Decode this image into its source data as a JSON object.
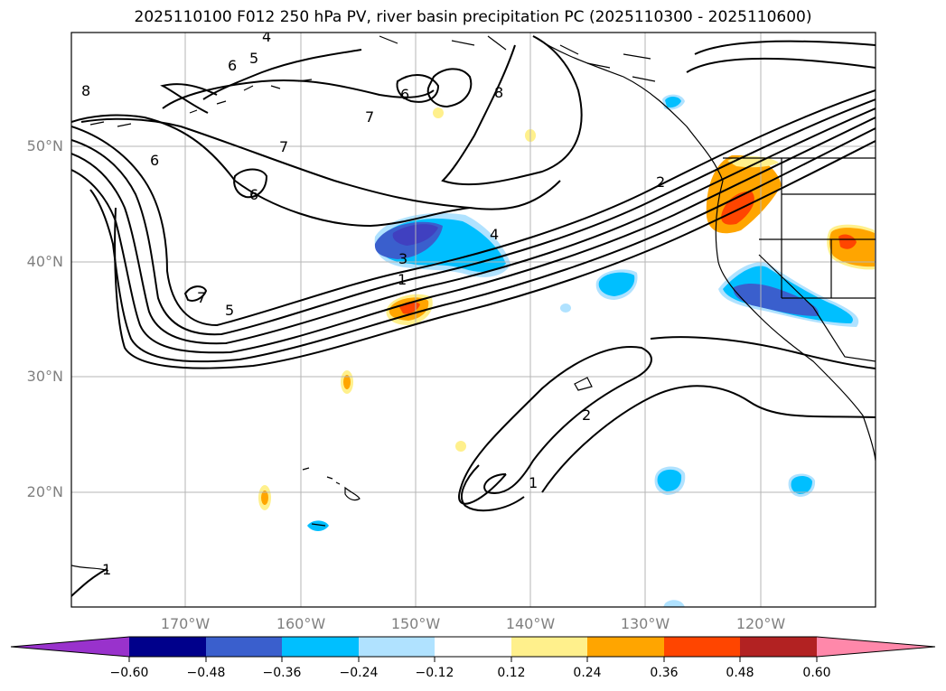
{
  "title": "2025110100 F012 250 hPa PV, river basin precipitation PC (2025110300 - 2025110600)",
  "map": {
    "lat_labels": [
      "50°N",
      "40°N",
      "30°N",
      "20°N"
    ],
    "lon_labels": [
      "170°W",
      "160°W",
      "150°W",
      "140°W",
      "130°W",
      "120°W"
    ],
    "contour_labels": [
      "4",
      "5",
      "6",
      "8",
      "6",
      "7",
      "8",
      "7",
      "6",
      "6",
      "7",
      "5",
      "3",
      "1",
      "4",
      "2",
      "2",
      "1",
      "1"
    ]
  },
  "colorbar": {
    "tick_labels": [
      "−0.60",
      "−0.48",
      "−0.36",
      "−0.24",
      "−0.12",
      "0.12",
      "0.24",
      "0.36",
      "0.48",
      "0.60"
    ],
    "colors": [
      "#9932cc",
      "#00008b",
      "#3a5fcd",
      "#00bfff",
      "#b0e2ff",
      "#ffffff",
      "#fff08c",
      "#ffa500",
      "#ff4500",
      "#b22222",
      "#ff88aa"
    ]
  }
}
